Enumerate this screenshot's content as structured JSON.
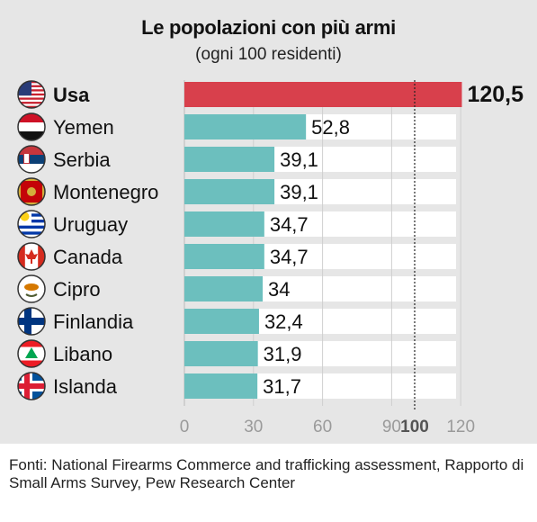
{
  "chart_data": {
    "type": "bar",
    "orientation": "horizontal",
    "title": "Le popolazioni con più armi",
    "subtitle": "(ogni 100 residenti)",
    "categories": [
      "Usa",
      "Yemen",
      "Serbia",
      "Montenegro",
      "Uruguay",
      "Canada",
      "Cipro",
      "Finlandia",
      "Libano",
      "Islanda"
    ],
    "values": [
      120.5,
      52.8,
      39.1,
      39.1,
      34.7,
      34.7,
      34,
      32.4,
      31.9,
      31.7
    ],
    "value_labels": [
      "120,5",
      "52,8",
      "39,1",
      "39,1",
      "34,7",
      "34,7",
      "34",
      "32,4",
      "31,9",
      "31,7"
    ],
    "highlight_category": "Usa",
    "xlim": [
      0,
      120
    ],
    "x_ticks": [
      0,
      30,
      60,
      90,
      100,
      120
    ],
    "reference_line": 100,
    "flags": [
      "usa-flag-icon",
      "yemen-flag-icon",
      "serbia-flag-icon",
      "montenegro-flag-icon",
      "uruguay-flag-icon",
      "canada-flag-icon",
      "cyprus-flag-icon",
      "finland-flag-icon",
      "lebanon-flag-icon",
      "iceland-flag-icon"
    ],
    "colors": {
      "highlight_bar": "#d8404c",
      "bar": "#6cbfbe",
      "background": "#e6e6e6",
      "bar_track": "#ffffff"
    }
  },
  "source": "Fonti: National Firearms Commerce and trafficking assessment, Rapporto di Small Arms Survey, Pew Research Center"
}
